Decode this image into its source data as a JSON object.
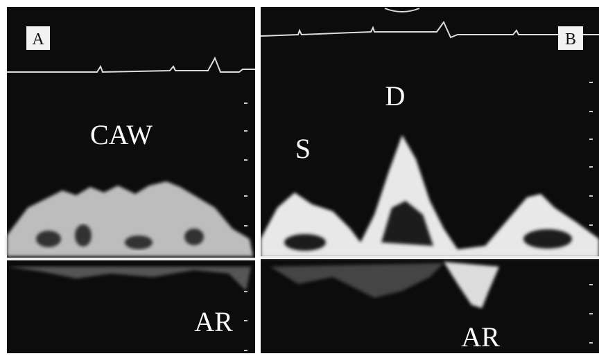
{
  "panels": [
    {
      "label": "A",
      "annotations": [
        "CAW",
        "AR"
      ]
    },
    {
      "label": "B",
      "annotations": [
        "S",
        "D",
        "AR"
      ]
    }
  ]
}
